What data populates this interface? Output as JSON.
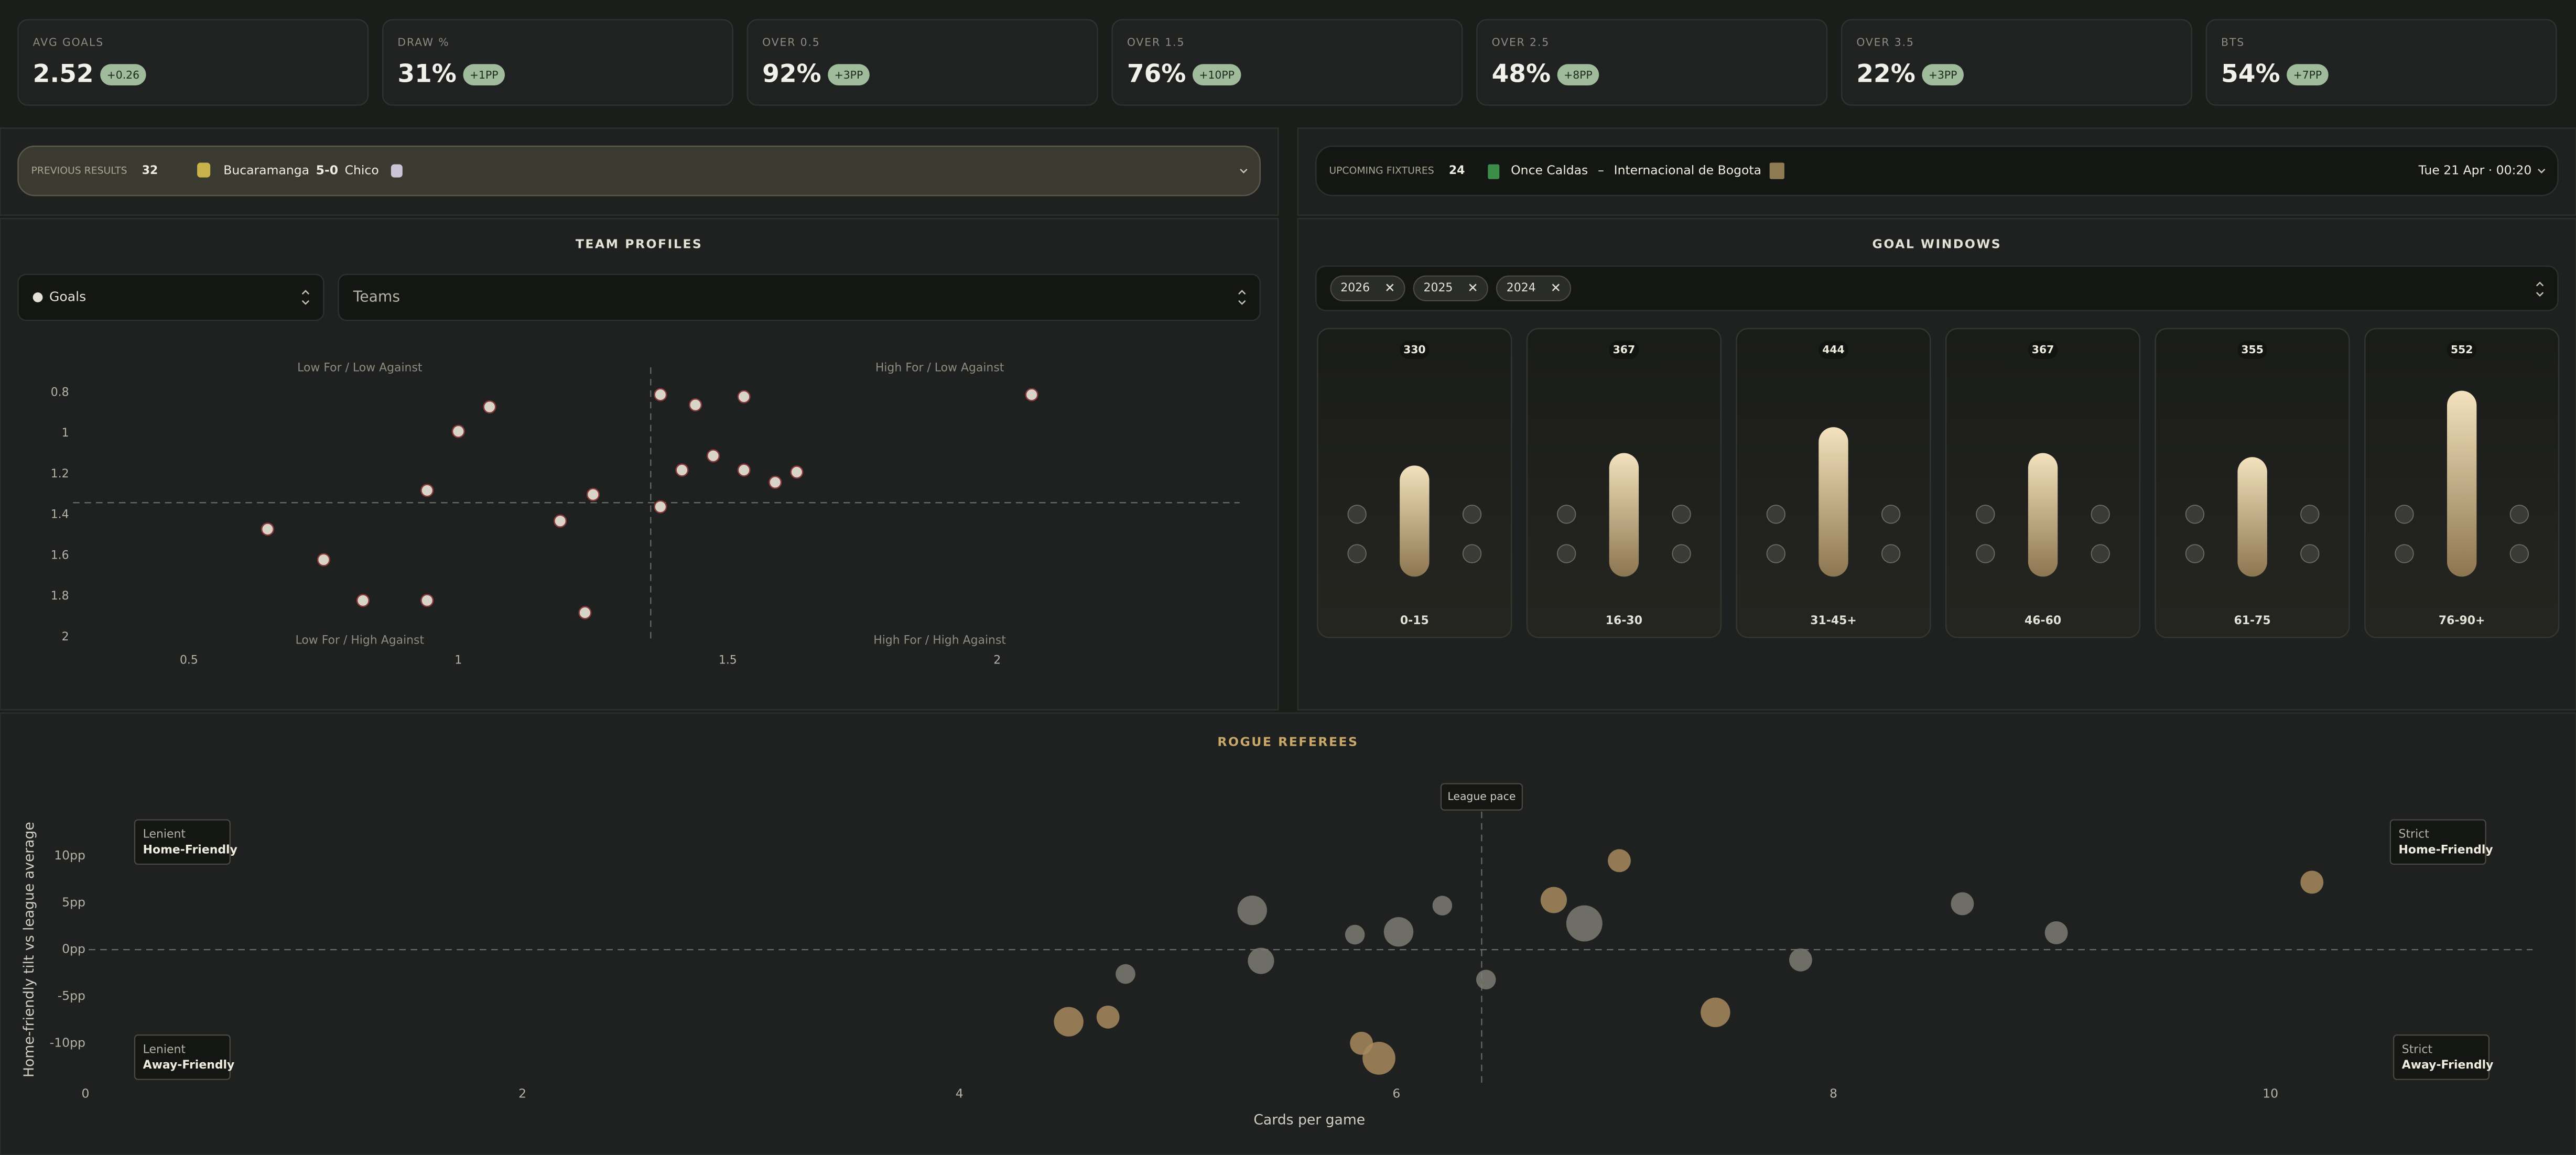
{
  "stats": [
    {
      "label": "AVG GOALS",
      "value": "2.52",
      "delta": "+0.26"
    },
    {
      "label": "DRAW %",
      "value": "31%",
      "delta": "+1PP"
    },
    {
      "label": "OVER 0.5",
      "value": "92%",
      "delta": "+3PP"
    },
    {
      "label": "OVER 1.5",
      "value": "76%",
      "delta": "+10PP"
    },
    {
      "label": "OVER 2.5",
      "value": "48%",
      "delta": "+8PP"
    },
    {
      "label": "OVER 3.5",
      "value": "22%",
      "delta": "+3PP"
    },
    {
      "label": "BTS",
      "value": "54%",
      "delta": "+7PP"
    }
  ],
  "previous_results": {
    "label": "PREVIOUS RESULTS",
    "count": 32,
    "home": "Bucaramanga",
    "score": "5-0",
    "away": "Chico"
  },
  "upcoming_fixtures": {
    "label": "UPCOMING FIXTURES",
    "count": 24,
    "home": "Once Caldas",
    "separator": "–",
    "away": "Internacional de Bogota",
    "kickoff": "Tue 21 Apr · 00:20"
  },
  "chart_data": [
    {
      "type": "scatter",
      "title": "TEAM PROFILES",
      "controls": [
        "Goals",
        "Teams"
      ],
      "quadrant_labels": [
        "Low For / Low Against",
        "High For / Low Against",
        "Low For / High Against",
        "High For / High Against"
      ],
      "x": [
        0.646,
        0.75,
        0.823,
        0.942,
        0.942,
        1.0,
        1.058,
        1.189,
        1.235,
        1.25,
        1.375,
        1.375,
        1.415,
        1.44,
        1.473,
        1.53,
        1.53,
        1.588,
        1.628,
        2.064
      ],
      "y": [
        1.47,
        1.62,
        1.82,
        1.82,
        1.28,
        0.99,
        0.87,
        1.43,
        1.88,
        1.3,
        1.36,
        0.81,
        1.18,
        0.86,
        1.11,
        0.82,
        1.18,
        1.24,
        1.19,
        0.81
      ],
      "xlim": [
        0.3,
        2.45
      ],
      "ylim": [
        2.02,
        0.7
      ],
      "xticks": [
        0.5,
        1,
        1.5,
        2
      ],
      "yticks": [
        0.8,
        1,
        1.2,
        1.4,
        1.6,
        1.8,
        2
      ],
      "reference_x": 1.357,
      "reference_y": 1.34,
      "color": "#d8d4c8"
    },
    {
      "type": "bar",
      "title": "GOAL WINDOWS",
      "filters": [
        "2026",
        "2025",
        "2024"
      ],
      "categories": [
        "0-15",
        "16-30",
        "31-45+",
        "46-60",
        "61-75",
        "76-90+"
      ],
      "values": [
        330,
        367,
        444,
        367,
        355,
        552
      ],
      "ylim": [
        0,
        600
      ],
      "color": "#d9c49a"
    },
    {
      "type": "bubble",
      "title": "ROGUE REFEREES",
      "x_label": "Cards per game",
      "y_label": "Home-friendly tilt vs league average",
      "x": [
        4.5,
        4.68,
        4.76,
        5.34,
        5.38,
        5.81,
        5.84,
        5.92,
        6.01,
        6.21,
        6.41,
        6.72,
        6.86,
        7.02,
        7.46,
        7.85,
        8.59,
        9.02,
        10.19
      ],
      "y": [
        -7.7,
        -7.2,
        -2.6,
        4.2,
        -1.2,
        1.6,
        -10,
        -11.6,
        1.9,
        4.7,
        -3.2,
        5.3,
        2.8,
        9.5,
        -6.7,
        -1.1,
        4.9,
        1.8,
        7.2
      ],
      "sizes": [
        9,
        7,
        6,
        9,
        8,
        6,
        7,
        10,
        9,
        6,
        6,
        8,
        11,
        7,
        9,
        7,
        7,
        7,
        7
      ],
      "colors": [
        "#a88a5e",
        "#a88a5e",
        "#7d7b74",
        "#7d7b74",
        "#7d7b74",
        "#7d7b74",
        "#a88a5e",
        "#a88a5e",
        "#7d7b74",
        "#7d7b74",
        "#7d7b74",
        "#a88a5e",
        "#7d7b74",
        "#a88a5e",
        "#a88a5e",
        "#7d7b74",
        "#7d7b74",
        "#7d7b74",
        "#a88a5e"
      ],
      "xlim": [
        0,
        11.2
      ],
      "ylim": [
        -15,
        15
      ],
      "xticks": [
        0,
        2,
        4,
        6,
        8,
        10
      ],
      "yticks": [
        {
          "value": 10,
          "label": "10pp"
        },
        {
          "value": 5,
          "label": "5pp"
        },
        {
          "value": 0,
          "label": "0pp"
        },
        {
          "value": -5,
          "label": "-5pp"
        },
        {
          "value": -10,
          "label": "-10pp"
        }
      ],
      "reference_x": 6.39,
      "reference_label": "League pace",
      "reference_y": 0,
      "corner_labels": [
        {
          "title": "Lenient",
          "subtitle": "Home-Friendly"
        },
        {
          "title": "Strict",
          "subtitle": "Home-Friendly"
        },
        {
          "title": "Lenient",
          "subtitle": "Away-Friendly"
        },
        {
          "title": "Strict",
          "subtitle": "Away-Friendly"
        }
      ]
    }
  ]
}
